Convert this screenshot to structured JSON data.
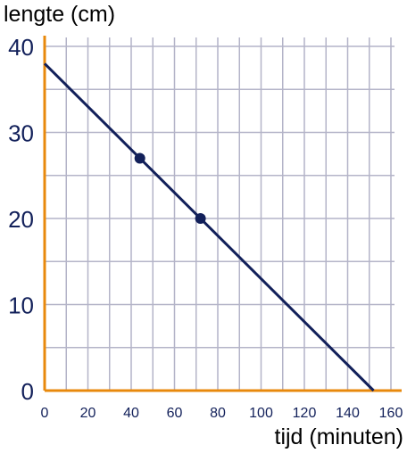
{
  "chart_data": {
    "type": "line",
    "title": "",
    "ylabel": "lengte (cm)",
    "xlabel": "tijd (minuten)",
    "xlim": [
      0,
      160
    ],
    "ylim": [
      0,
      40
    ],
    "x_ticks": [
      0,
      20,
      40,
      60,
      80,
      100,
      120,
      140,
      160
    ],
    "y_ticks": [
      0,
      10,
      20,
      30,
      40
    ],
    "x_grid_step": 10,
    "y_grid_step": 5,
    "grid": true,
    "series": [
      {
        "x": [
          0,
          152
        ],
        "y": [
          38,
          0
        ]
      }
    ],
    "points": [
      {
        "x": 44,
        "y": 27
      },
      {
        "x": 72,
        "y": 20
      }
    ]
  },
  "colors": {
    "axis": "#e8890c",
    "label": "#e8890c",
    "grid": "#b4b4c8",
    "line": "#12205a",
    "tick_text": "#12205a"
  }
}
